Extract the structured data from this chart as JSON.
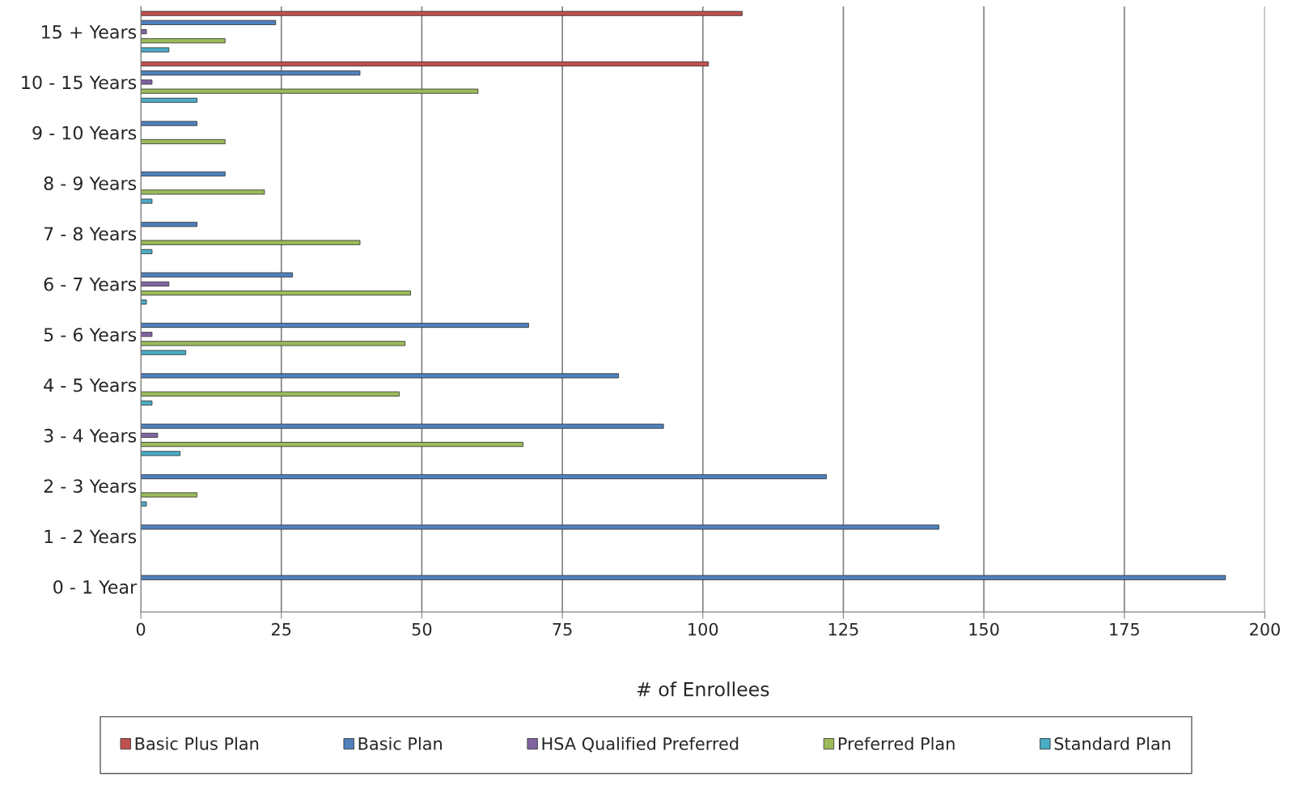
{
  "chart_data": {
    "type": "bar",
    "orientation": "horizontal",
    "xlabel": "# of Enrollees",
    "categories": [
      "15 + Years",
      "10 - 15 Years",
      "9 - 10 Years",
      "8 - 9 Years",
      "7 - 8 Years",
      "6 - 7 Years",
      "5 - 6 Years",
      "4 - 5 Years",
      "3 - 4 Years",
      "2 - 3 Years",
      "1 - 2 Years",
      "0 - 1 Year"
    ],
    "series": [
      {
        "name": "Basic Plus Plan",
        "color": "#c0504d",
        "values": [
          107,
          101,
          null,
          null,
          null,
          null,
          null,
          null,
          null,
          null,
          null,
          null
        ]
      },
      {
        "name": "Basic Plan",
        "color": "#4f81bd",
        "values": [
          24,
          39,
          10,
          15,
          10,
          27,
          69,
          85,
          93,
          122,
          142,
          193
        ]
      },
      {
        "name": "HSA Qualified Preferred",
        "color": "#8064a2",
        "values": [
          1,
          2,
          null,
          null,
          null,
          5,
          2,
          null,
          3,
          null,
          null,
          null
        ]
      },
      {
        "name": "Preferred Plan",
        "color": "#9bbb59",
        "values": [
          15,
          60,
          15,
          22,
          39,
          48,
          47,
          46,
          68,
          10,
          null,
          null
        ]
      },
      {
        "name": "Standard Plan",
        "color": "#4bacc6",
        "values": [
          5,
          10,
          null,
          2,
          2,
          1,
          8,
          2,
          7,
          1,
          null,
          null
        ]
      }
    ],
    "xlim": [
      0,
      200
    ],
    "xticks": [
      0,
      25,
      50,
      75,
      100,
      125,
      150,
      175,
      200
    ],
    "grid": "x",
    "legend": "bottom"
  }
}
